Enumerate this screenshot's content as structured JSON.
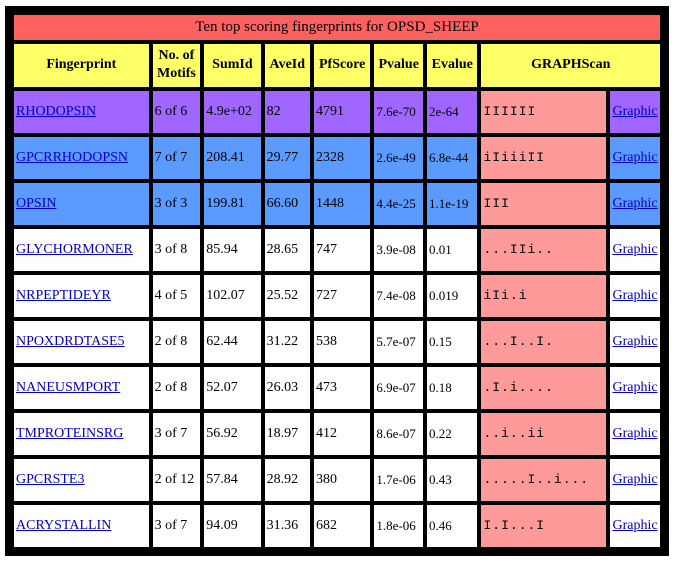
{
  "title": "Ten top scoring fingerprints for OPSD_SHEEP",
  "headers": {
    "fingerprint": "Fingerprint",
    "motifs_line1": "No. of",
    "motifs_line2": "Motifs",
    "sumid": "SumId",
    "aveid": "AveId",
    "pfscore": "PfScore",
    "pvalue": "Pvalue",
    "evalue": "Evalue",
    "graphscan": "GRAPHScan"
  },
  "colors": {
    "title_bg": "#ff6060",
    "header_bg": "#ffff66",
    "purple": "#a066ff",
    "blue": "#5b9bff",
    "white": "#ffffff",
    "scan_bg": "#ff9a9a",
    "graphic_bg": "#ffffff"
  },
  "rows": [
    {
      "fingerprint": "RHODOPSIN",
      "motifs": "6 of 6",
      "sumid": "4.9e+02",
      "aveid": "82",
      "pfscore": "4791",
      "pvalue": "7.6e-70",
      "evalue": "2e-64",
      "scan": "IIIIII",
      "graphic": "Graphic",
      "row_color": "purple",
      "graphic_color": "purple"
    },
    {
      "fingerprint": "GPCRRHODOPSN",
      "motifs": "7 of 7",
      "sumid": "208.41",
      "aveid": "29.77",
      "pfscore": "2328",
      "pvalue": "2.6e-49",
      "evalue": "6.8e-44",
      "scan": "iIiiiII",
      "graphic": "Graphic",
      "row_color": "blue",
      "graphic_color": "blue"
    },
    {
      "fingerprint": "OPSIN",
      "motifs": "3 of 3",
      "sumid": "199.81",
      "aveid": "66.60",
      "pfscore": "1448",
      "pvalue": "4.4e-25",
      "evalue": "1.1e-19",
      "scan": "III",
      "graphic": "Graphic",
      "row_color": "blue",
      "graphic_color": "blue"
    },
    {
      "fingerprint": "GLYCHORMONER",
      "motifs": "3 of 8",
      "sumid": "85.94",
      "aveid": "28.65",
      "pfscore": "747",
      "pvalue": "3.9e-08",
      "evalue": "0.01",
      "scan": "...IIi..",
      "graphic": "Graphic",
      "row_color": "white",
      "graphic_color": "white"
    },
    {
      "fingerprint": "NRPEPTIDEYR",
      "motifs": "4 of 5",
      "sumid": "102.07",
      "aveid": "25.52",
      "pfscore": "727",
      "pvalue": "7.4e-08",
      "evalue": "0.019",
      "scan": "iIi.i",
      "graphic": "Graphic",
      "row_color": "white",
      "graphic_color": "white"
    },
    {
      "fingerprint": "NPOXDRDTASE5",
      "motifs": "2 of 8",
      "sumid": "62.44",
      "aveid": "31.22",
      "pfscore": "538",
      "pvalue": "5.7e-07",
      "evalue": "0.15",
      "scan": "...I..I.",
      "graphic": "Graphic",
      "row_color": "white",
      "graphic_color": "white"
    },
    {
      "fingerprint": "NANEUSMPORT",
      "motifs": "2 of 8",
      "sumid": "52.07",
      "aveid": "26.03",
      "pfscore": "473",
      "pvalue": "6.9e-07",
      "evalue": "0.18",
      "scan": ".I.i....",
      "graphic": "Graphic",
      "row_color": "white",
      "graphic_color": "white"
    },
    {
      "fingerprint": "TMPROTEINSRG",
      "motifs": "3 of 7",
      "sumid": "56.92",
      "aveid": "18.97",
      "pfscore": "412",
      "pvalue": "8.6e-07",
      "evalue": "0.22",
      "scan": "..i..ii",
      "graphic": "Graphic",
      "row_color": "white",
      "graphic_color": "white"
    },
    {
      "fingerprint": "GPCRSTE3",
      "motifs": "2 of 12",
      "sumid": "57.84",
      "aveid": "28.92",
      "pfscore": "380",
      "pvalue": "1.7e-06",
      "evalue": "0.43",
      "scan": ".....I..i...",
      "graphic": "Graphic",
      "row_color": "white",
      "graphic_color": "white"
    },
    {
      "fingerprint": "ACRYSTALLIN",
      "motifs": "3 of 7",
      "sumid": "94.09",
      "aveid": "31.36",
      "pfscore": "682",
      "pvalue": "1.8e-06",
      "evalue": "0.46",
      "scan": "I.I...I",
      "graphic": "Graphic",
      "row_color": "white",
      "graphic_color": "white"
    }
  ]
}
